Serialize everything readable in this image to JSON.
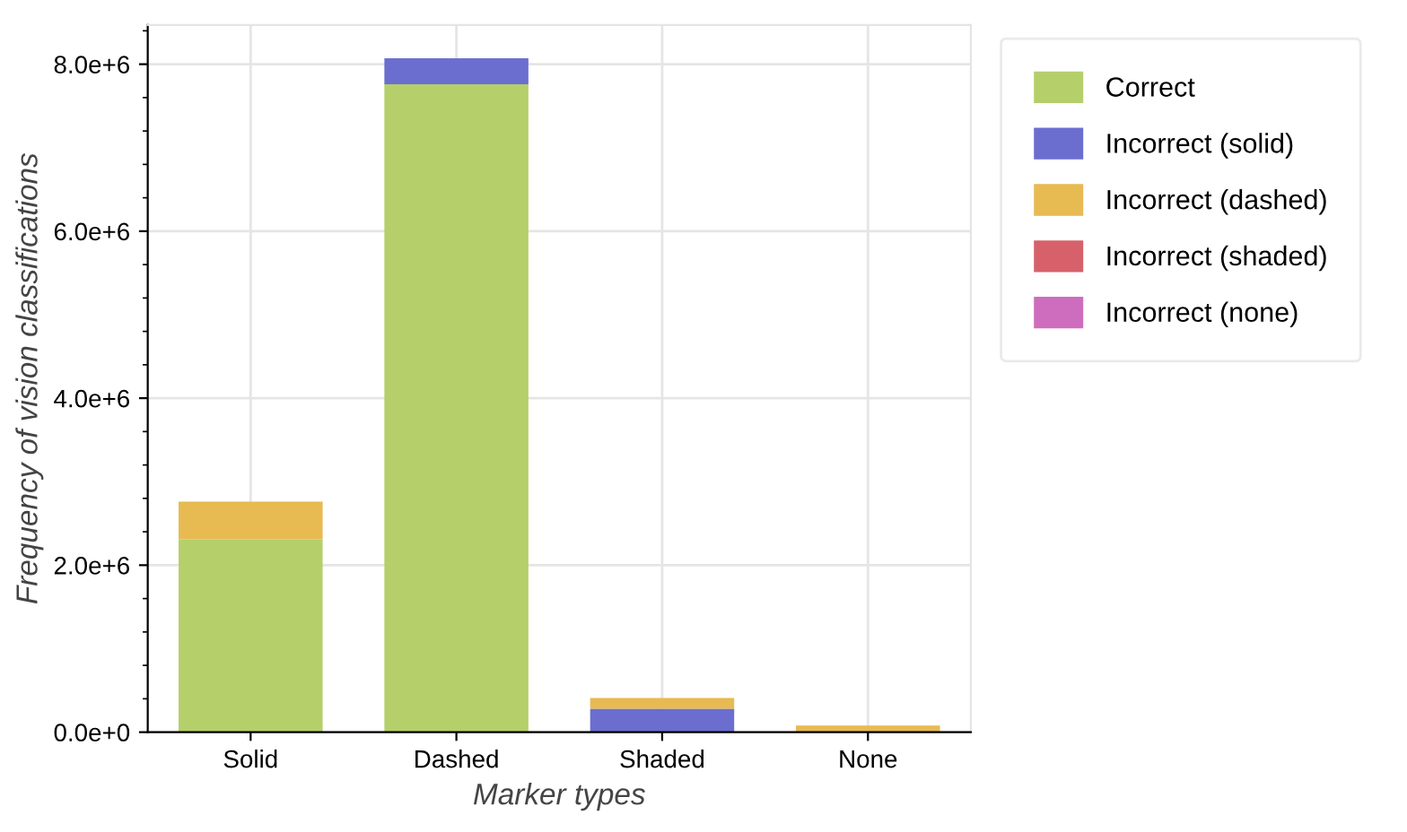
{
  "chart_data": {
    "type": "bar",
    "stacked": true,
    "xlabel": "Marker types",
    "ylabel": "Frequency of vision classifications",
    "categories": [
      "Solid",
      "Dashed",
      "Shaded",
      "None"
    ],
    "series": [
      {
        "name": "Correct",
        "color": "#b5cf6b",
        "values": [
          2310000,
          7760000,
          0,
          0
        ]
      },
      {
        "name": "Incorrect (solid)",
        "color": "#6b6ecf",
        "values": [
          0,
          310000,
          280000,
          0
        ]
      },
      {
        "name": "Incorrect (dashed)",
        "color": "#e7ba52",
        "values": [
          450000,
          0,
          130000,
          80000
        ]
      },
      {
        "name": "Incorrect (shaded)",
        "color": "#d6616b",
        "values": [
          0,
          0,
          0,
          0
        ]
      },
      {
        "name": "Incorrect (none)",
        "color": "#ce6dbd",
        "values": [
          0,
          0,
          0,
          0
        ]
      }
    ],
    "ylim": [
      0,
      8470000
    ],
    "yticks": [
      {
        "value": 0,
        "label": "0.0e+0"
      },
      {
        "value": 2000000,
        "label": "2.0e+6"
      },
      {
        "value": 4000000,
        "label": "4.0e+6"
      },
      {
        "value": 6000000,
        "label": "6.0e+6"
      },
      {
        "value": 8000000,
        "label": "8.0e+6"
      }
    ],
    "grid": true,
    "legend": "right"
  }
}
